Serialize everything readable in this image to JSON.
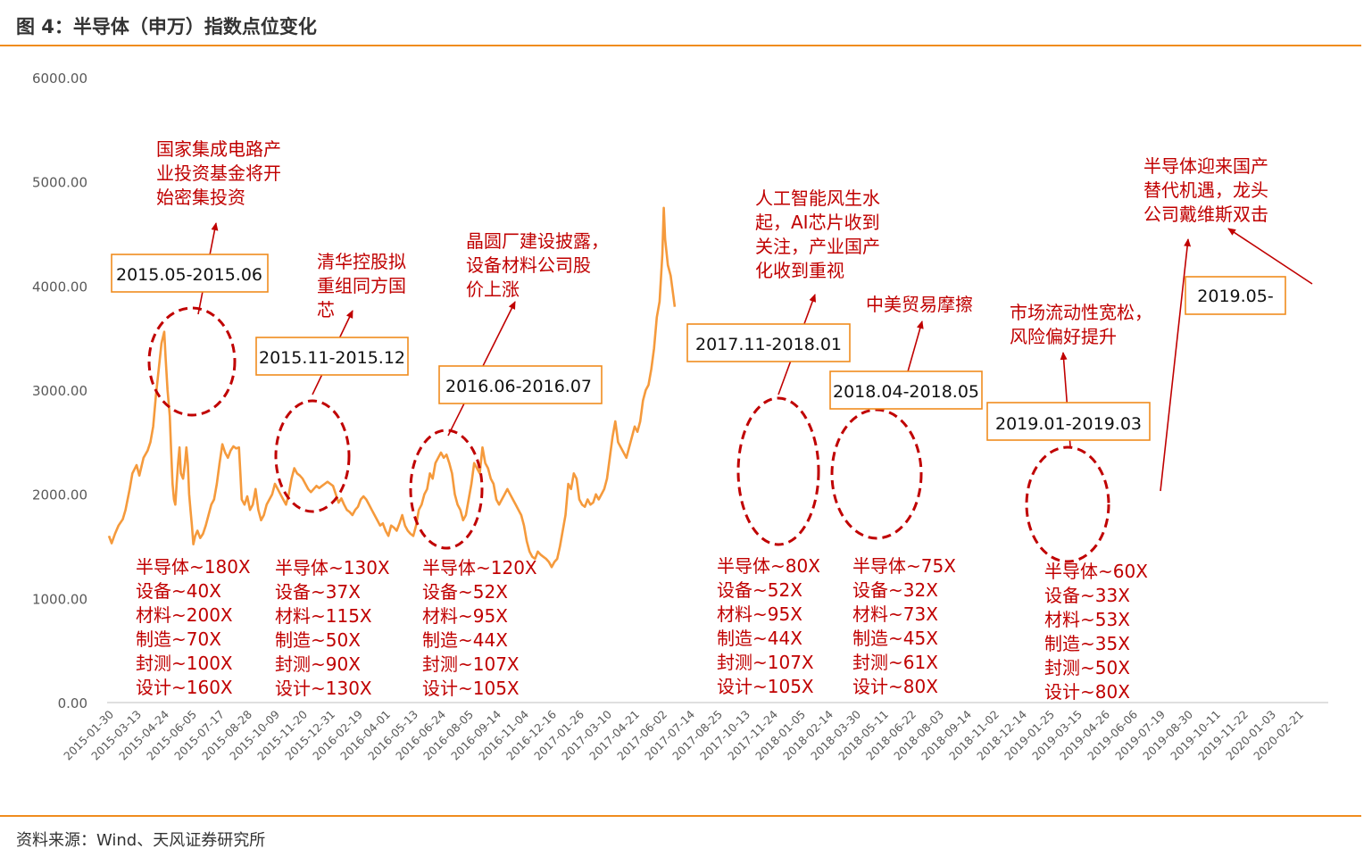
{
  "title": "图 4：半导体（申万）指数点位变化",
  "source": "资料来源：Wind、天风证券研究所",
  "colors": {
    "line": "#f59a3c",
    "accent": "#f08c1e",
    "ellipse": "#c00000",
    "annotation": "#c00000",
    "arrow": "#c00000",
    "box_border": "#f08c1e"
  },
  "chart_data": {
    "type": "line",
    "title": "",
    "xlabel": "",
    "ylabel": "",
    "ylim": [
      0,
      6000
    ],
    "y_ticks": [
      "6000.00",
      "5000.00",
      "4000.00",
      "3000.00",
      "2000.00",
      "1000.00",
      "0.00"
    ],
    "x_ticks": [
      "2015-01-30",
      "2015-03-13",
      "2015-04-24",
      "2015-06-05",
      "2015-07-17",
      "2015-08-28",
      "2015-10-09",
      "2015-11-20",
      "2015-12-31",
      "2016-02-19",
      "2016-04-01",
      "2016-05-13",
      "2016-06-24",
      "2016-08-05",
      "2016-09-14",
      "2016-11-04",
      "2016-12-16",
      "2017-01-26",
      "2017-03-10",
      "2017-04-21",
      "2017-06-02",
      "2017-07-14",
      "2017-08-25",
      "2017-10-13",
      "2017-11-24",
      "2018-01-05",
      "2018-02-14",
      "2018-03-30",
      "2018-05-11",
      "2018-06-22",
      "2018-08-03",
      "2018-09-14",
      "2018-11-02",
      "2018-12-14",
      "2019-01-25",
      "2019-03-15",
      "2019-04-26",
      "2019-06-06",
      "2019-07-19",
      "2019-08-30",
      "2019-10-11",
      "2019-11-22",
      "2020-01-03",
      "2020-02-21"
    ],
    "series": [
      {
        "name": "",
        "values": [
          [
            0,
            1600
          ],
          [
            0.1,
            1530
          ],
          [
            0.22,
            1620
          ],
          [
            0.35,
            1700
          ],
          [
            0.5,
            1760
          ],
          [
            0.6,
            1850
          ],
          [
            0.75,
            2050
          ],
          [
            0.85,
            2200
          ],
          [
            1.0,
            2280
          ],
          [
            1.1,
            2180
          ],
          [
            1.25,
            2350
          ],
          [
            1.4,
            2420
          ],
          [
            1.5,
            2500
          ],
          [
            1.6,
            2650
          ],
          [
            1.7,
            2950
          ],
          [
            1.8,
            3200
          ],
          [
            1.9,
            3450
          ],
          [
            2.0,
            3560
          ],
          [
            2.05,
            3300
          ],
          [
            2.12,
            3000
          ],
          [
            2.2,
            2750
          ],
          [
            2.25,
            2400
          ],
          [
            2.3,
            2100
          ],
          [
            2.35,
            1950
          ],
          [
            2.4,
            1900
          ],
          [
            2.45,
            2100
          ],
          [
            2.5,
            2300
          ],
          [
            2.55,
            2450
          ],
          [
            2.6,
            2200
          ],
          [
            2.68,
            2150
          ],
          [
            2.75,
            2300
          ],
          [
            2.8,
            2450
          ],
          [
            2.85,
            2300
          ],
          [
            2.9,
            2000
          ],
          [
            2.95,
            1850
          ],
          [
            3.0,
            1700
          ],
          [
            3.05,
            1520
          ],
          [
            3.12,
            1600
          ],
          [
            3.2,
            1650
          ],
          [
            3.3,
            1580
          ],
          [
            3.4,
            1620
          ],
          [
            3.5,
            1700
          ],
          [
            3.6,
            1800
          ],
          [
            3.7,
            1900
          ],
          [
            3.8,
            1950
          ],
          [
            3.9,
            2100
          ],
          [
            4.0,
            2300
          ],
          [
            4.1,
            2480
          ],
          [
            4.2,
            2400
          ],
          [
            4.3,
            2350
          ],
          [
            4.4,
            2420
          ],
          [
            4.5,
            2460
          ],
          [
            4.6,
            2440
          ],
          [
            4.7,
            2450
          ],
          [
            4.75,
            2200
          ],
          [
            4.8,
            1950
          ],
          [
            4.9,
            1900
          ],
          [
            5.0,
            1980
          ],
          [
            5.1,
            1850
          ],
          [
            5.2,
            1900
          ],
          [
            5.3,
            2050
          ],
          [
            5.4,
            1850
          ],
          [
            5.5,
            1750
          ],
          [
            5.6,
            1800
          ],
          [
            5.7,
            1900
          ],
          [
            5.8,
            1950
          ],
          [
            5.9,
            2000
          ],
          [
            6.0,
            2100
          ],
          [
            6.1,
            2050
          ],
          [
            6.2,
            2000
          ],
          [
            6.3,
            1950
          ],
          [
            6.4,
            1900
          ],
          [
            6.5,
            2000
          ],
          [
            6.6,
            2150
          ],
          [
            6.7,
            2250
          ],
          [
            6.8,
            2200
          ],
          [
            6.9,
            2180
          ],
          [
            7.0,
            2150
          ],
          [
            7.1,
            2100
          ],
          [
            7.2,
            2050
          ],
          [
            7.3,
            2020
          ],
          [
            7.4,
            2050
          ],
          [
            7.5,
            2080
          ],
          [
            7.6,
            2060
          ],
          [
            7.7,
            2080
          ],
          [
            7.8,
            2100
          ],
          [
            7.9,
            2120
          ],
          [
            8.0,
            2100
          ],
          [
            8.1,
            2080
          ],
          [
            8.2,
            2000
          ],
          [
            8.3,
            1920
          ],
          [
            8.4,
            1960
          ],
          [
            8.5,
            1900
          ],
          [
            8.6,
            1850
          ],
          [
            8.7,
            1830
          ],
          [
            8.8,
            1800
          ],
          [
            8.9,
            1850
          ],
          [
            9.0,
            1880
          ],
          [
            9.1,
            1950
          ],
          [
            9.2,
            1980
          ],
          [
            9.3,
            1950
          ],
          [
            9.4,
            1900
          ],
          [
            9.5,
            1850
          ],
          [
            9.6,
            1800
          ],
          [
            9.7,
            1750
          ],
          [
            9.8,
            1700
          ],
          [
            9.9,
            1720
          ],
          [
            10.0,
            1650
          ],
          [
            10.1,
            1600
          ],
          [
            10.2,
            1700
          ],
          [
            10.3,
            1680
          ],
          [
            10.4,
            1650
          ],
          [
            10.5,
            1720
          ],
          [
            10.6,
            1800
          ],
          [
            10.7,
            1700
          ],
          [
            10.8,
            1650
          ],
          [
            10.9,
            1620
          ],
          [
            11.0,
            1600
          ],
          [
            11.1,
            1700
          ],
          [
            11.2,
            1850
          ],
          [
            11.3,
            1900
          ],
          [
            11.4,
            2000
          ],
          [
            11.5,
            2050
          ],
          [
            11.6,
            2200
          ],
          [
            11.7,
            2150
          ],
          [
            11.8,
            2300
          ],
          [
            11.9,
            2350
          ],
          [
            12.0,
            2400
          ],
          [
            12.1,
            2350
          ],
          [
            12.2,
            2380
          ],
          [
            12.3,
            2300
          ],
          [
            12.4,
            2200
          ],
          [
            12.5,
            2000
          ],
          [
            12.6,
            1900
          ],
          [
            12.7,
            1850
          ],
          [
            12.8,
            1750
          ],
          [
            12.9,
            1800
          ],
          [
            13.0,
            1950
          ],
          [
            13.1,
            2100
          ],
          [
            13.2,
            2300
          ],
          [
            13.3,
            2250
          ],
          [
            13.4,
            2200
          ],
          [
            13.5,
            2450
          ],
          [
            13.6,
            2300
          ],
          [
            13.7,
            2250
          ],
          [
            13.8,
            2150
          ],
          [
            13.9,
            2100
          ],
          [
            14.0,
            1950
          ],
          [
            14.1,
            1900
          ],
          [
            14.2,
            1950
          ],
          [
            14.3,
            2000
          ],
          [
            14.4,
            2050
          ],
          [
            14.5,
            2000
          ],
          [
            14.6,
            1950
          ],
          [
            14.7,
            1900
          ],
          [
            14.8,
            1850
          ],
          [
            14.9,
            1800
          ],
          [
            15.0,
            1700
          ],
          [
            15.1,
            1550
          ],
          [
            15.2,
            1450
          ],
          [
            15.3,
            1400
          ],
          [
            15.4,
            1380
          ],
          [
            15.5,
            1450
          ],
          [
            15.6,
            1420
          ],
          [
            15.7,
            1400
          ],
          [
            15.8,
            1380
          ],
          [
            15.9,
            1350
          ],
          [
            16.0,
            1300
          ],
          [
            16.1,
            1350
          ],
          [
            16.2,
            1380
          ],
          [
            16.3,
            1500
          ],
          [
            16.4,
            1650
          ],
          [
            16.5,
            1800
          ],
          [
            16.6,
            2100
          ],
          [
            16.7,
            2050
          ],
          [
            16.8,
            2200
          ],
          [
            16.9,
            2150
          ],
          [
            17.0,
            1950
          ],
          [
            17.1,
            1900
          ],
          [
            17.2,
            1880
          ],
          [
            17.3,
            1950
          ],
          [
            17.4,
            1900
          ],
          [
            17.5,
            1920
          ],
          [
            17.6,
            2000
          ],
          [
            17.7,
            1950
          ],
          [
            17.8,
            2000
          ],
          [
            17.9,
            2050
          ],
          [
            18.0,
            2150
          ],
          [
            18.1,
            2350
          ],
          [
            18.2,
            2550
          ],
          [
            18.3,
            2700
          ],
          [
            18.35,
            2600
          ],
          [
            18.4,
            2500
          ],
          [
            18.5,
            2450
          ],
          [
            18.6,
            2400
          ],
          [
            18.7,
            2350
          ],
          [
            18.8,
            2450
          ],
          [
            18.9,
            2550
          ],
          [
            19.0,
            2650
          ],
          [
            19.1,
            2600
          ],
          [
            19.2,
            2700
          ],
          [
            19.3,
            2900
          ],
          [
            19.4,
            3000
          ],
          [
            19.5,
            3050
          ],
          [
            19.6,
            3200
          ],
          [
            19.7,
            3400
          ],
          [
            19.8,
            3700
          ],
          [
            19.9,
            3850
          ],
          [
            20.0,
            4300
          ],
          [
            20.05,
            4750
          ],
          [
            20.1,
            4450
          ],
          [
            20.2,
            4200
          ],
          [
            20.3,
            4100
          ],
          [
            20.4,
            3900
          ],
          [
            20.45,
            3800
          ]
        ]
      }
    ],
    "periods": [
      {
        "label": "2015.05-2015.06",
        "event": [
          "国家集成电路产",
          "业投资基金将开",
          "始密集投资"
        ],
        "multiples": [
          "半导体~180X",
          "设备~40X",
          "材料~200X",
          "制造~70X",
          "封测~100X",
          "设计~160X"
        ]
      },
      {
        "label": "2015.11-2015.12",
        "event": [
          "清华控股拟",
          "重组同方国",
          "芯"
        ],
        "multiples": [
          "半导体~130X",
          "设备~37X",
          "材料~115X",
          "制造~50X",
          "封测~90X",
          "设计~130X"
        ]
      },
      {
        "label": "2016.06-2016.07",
        "event": [
          "晶圆厂建设披露，",
          "设备材料公司股",
          "价上涨"
        ],
        "multiples": [
          "半导体~120X",
          "设备~52X",
          "材料~95X",
          "制造~44X",
          "封测~107X",
          "设计~105X"
        ]
      },
      {
        "label": "2017.11-2018.01",
        "event": [
          "人工智能风生水",
          "起，AI芯片收到",
          "关注，产业国产",
          "化收到重视"
        ],
        "multiples": [
          "半导体~80X",
          "设备~52X",
          "材料~95X",
          "制造~44X",
          "封测~107X",
          "设计~105X"
        ]
      },
      {
        "label": "2018.04-2018.05",
        "event": [
          "中美贸易摩擦"
        ],
        "multiples": [
          "半导体~75X",
          "设备~32X",
          "材料~73X",
          "制造~45X",
          "封测~61X",
          "设计~80X"
        ]
      },
      {
        "label": "2019.01-2019.03",
        "event": [
          "市场流动性宽松，",
          "风险偏好提升"
        ],
        "multiples": [
          "半导体~60X",
          "设备~33X",
          "材料~53X",
          "制造~35X",
          "封测~50X",
          "设计~80X"
        ]
      },
      {
        "label": "2019.05-",
        "event": [
          "半导体迎来国产",
          "替代机遇，龙头",
          "公司戴维斯双击"
        ],
        "multiples": []
      }
    ]
  }
}
